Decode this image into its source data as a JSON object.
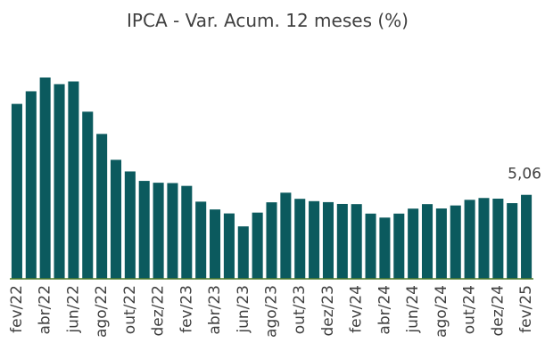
{
  "chart_data": {
    "type": "bar",
    "title": "IPCA - Var. Acum. 12 meses (%)",
    "categories": [
      "fev/22",
      null,
      "abr/22",
      null,
      "jun/22",
      null,
      "ago/22",
      null,
      "out/22",
      null,
      "dez/22",
      null,
      "fev/23",
      null,
      "abr/23",
      null,
      "jun/23",
      null,
      "ago/23",
      null,
      "out/23",
      null,
      "dez/23",
      null,
      "fev/24",
      null,
      "abr/24",
      null,
      "jun/24",
      null,
      "ago/24",
      null,
      "out/24",
      null,
      "dez/24",
      null,
      "fev/25"
    ],
    "values": [
      10.54,
      11.3,
      12.13,
      11.73,
      11.89,
      10.07,
      8.73,
      7.17,
      6.47,
      5.9,
      5.79,
      5.77,
      5.6,
      4.65,
      4.18,
      3.94,
      3.16,
      3.99,
      4.61,
      5.19,
      4.82,
      4.68,
      4.62,
      4.51,
      4.5,
      3.93,
      3.69,
      3.93,
      4.23,
      4.5,
      4.24,
      4.42,
      4.76,
      4.87,
      4.83,
      4.56,
      5.06
    ],
    "value_labels": [
      null,
      null,
      null,
      null,
      null,
      null,
      null,
      null,
      null,
      null,
      null,
      null,
      null,
      null,
      null,
      null,
      null,
      null,
      null,
      null,
      null,
      null,
      null,
      null,
      null,
      null,
      null,
      null,
      null,
      null,
      null,
      null,
      null,
      null,
      null,
      null,
      "5,06"
    ],
    "color": "#0b5a5e"
  }
}
